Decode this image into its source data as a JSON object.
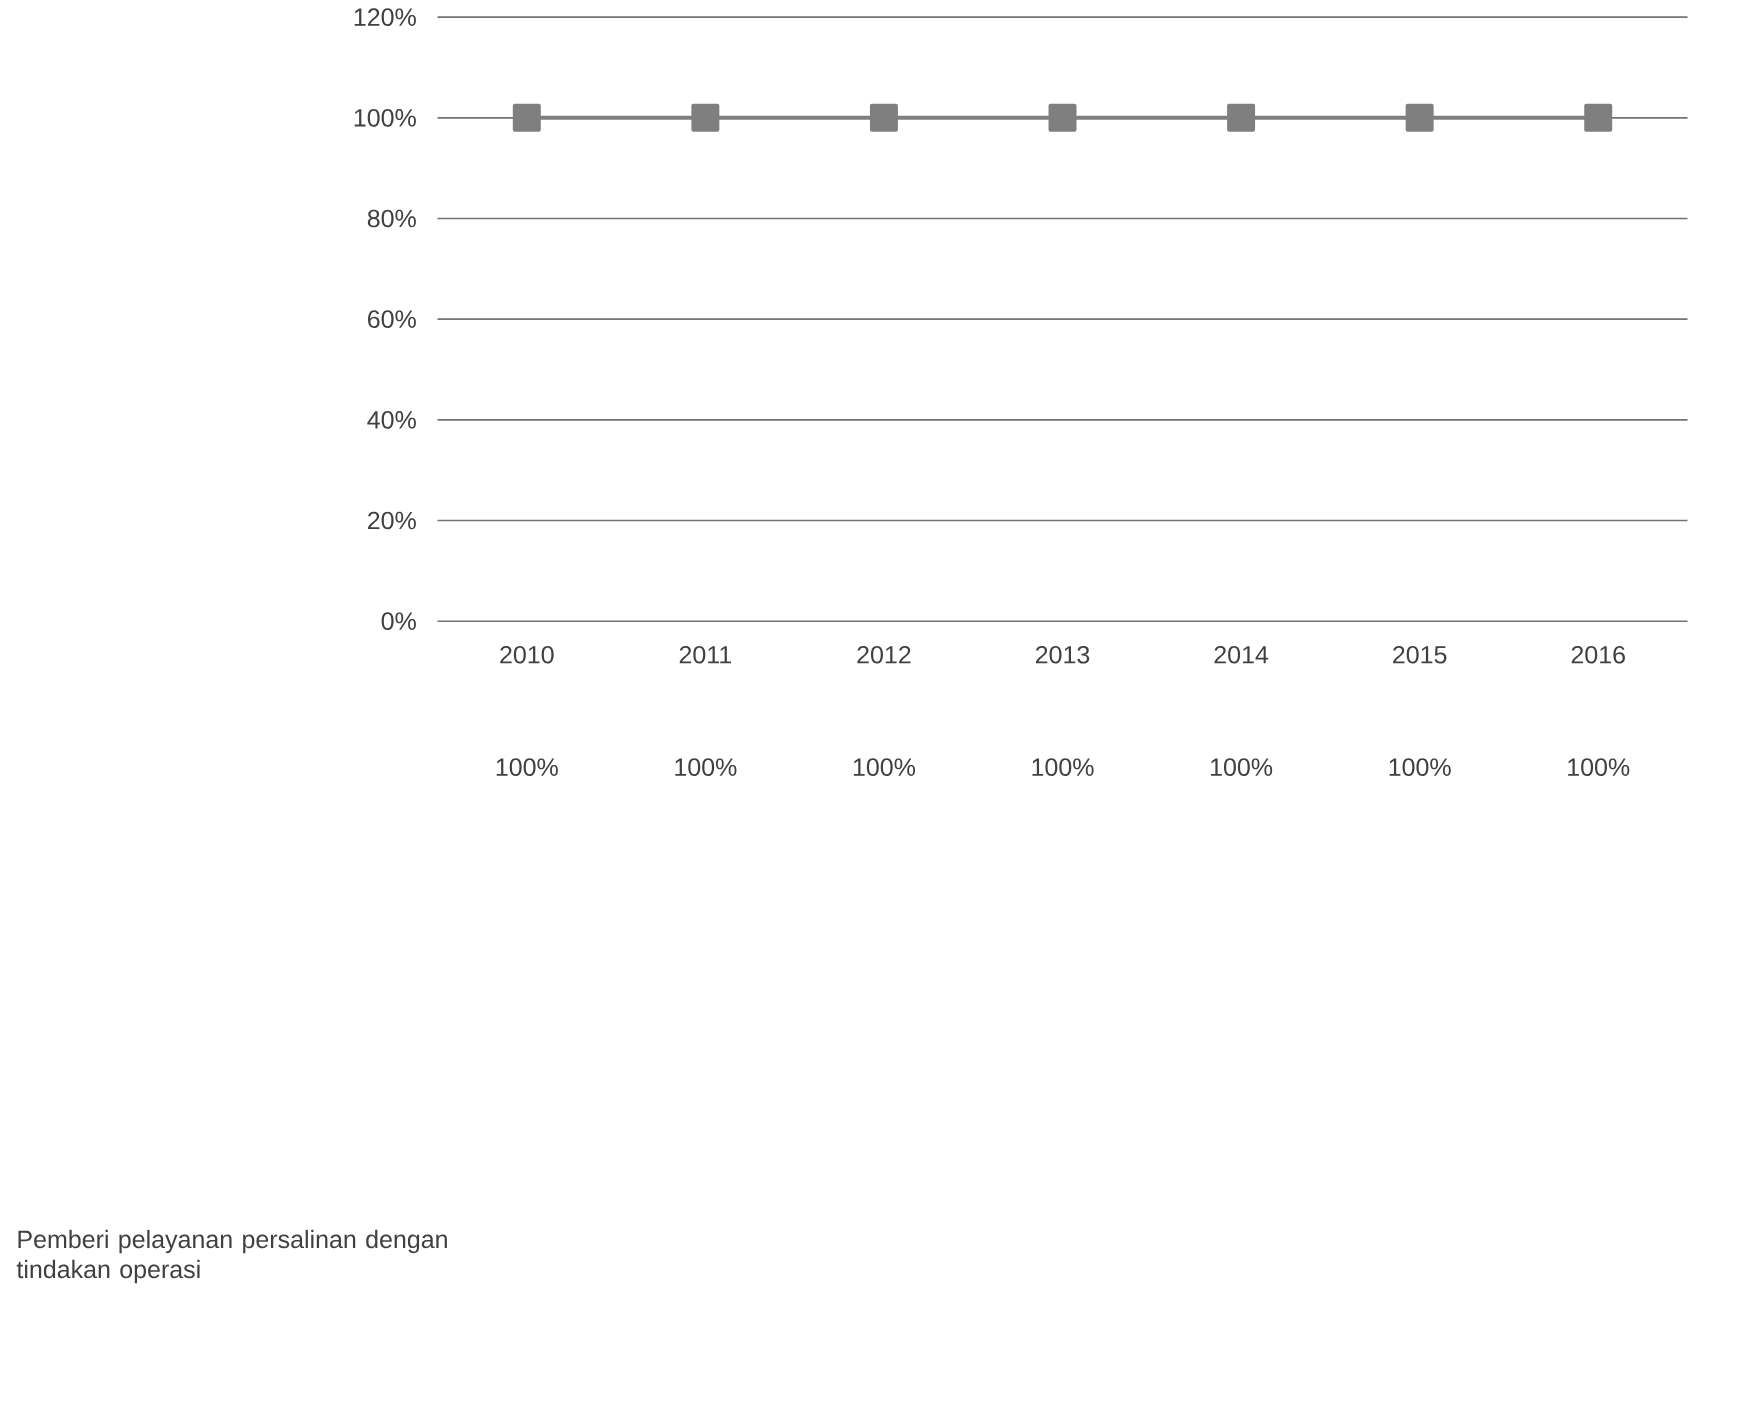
{
  "chart_data": {
    "type": "line",
    "categories": [
      "2010",
      "2011",
      "2012",
      "2013",
      "2014",
      "2015",
      "2016"
    ],
    "series": [
      {
        "name": "Pemberi pelayanan persalinan dengan tindakan operasi",
        "color": "#7f7f7f",
        "values": [
          100,
          100,
          100,
          100,
          100,
          100,
          100
        ],
        "value_labels": [
          "100%",
          "100%",
          "100%",
          "100%",
          "100%",
          "100%",
          "100%"
        ]
      }
    ],
    "ylim": [
      0,
      120
    ],
    "yticks": [
      {
        "value": 0,
        "label": "0%"
      },
      {
        "value": 20,
        "label": "20%"
      },
      {
        "value": 40,
        "label": "40%"
      },
      {
        "value": 60,
        "label": "60%"
      },
      {
        "value": 80,
        "label": "80%"
      },
      {
        "value": 100,
        "label": "100%"
      },
      {
        "value": 120,
        "label": "120%"
      }
    ],
    "grid": "y",
    "marker": "square",
    "line_style": "solid"
  }
}
